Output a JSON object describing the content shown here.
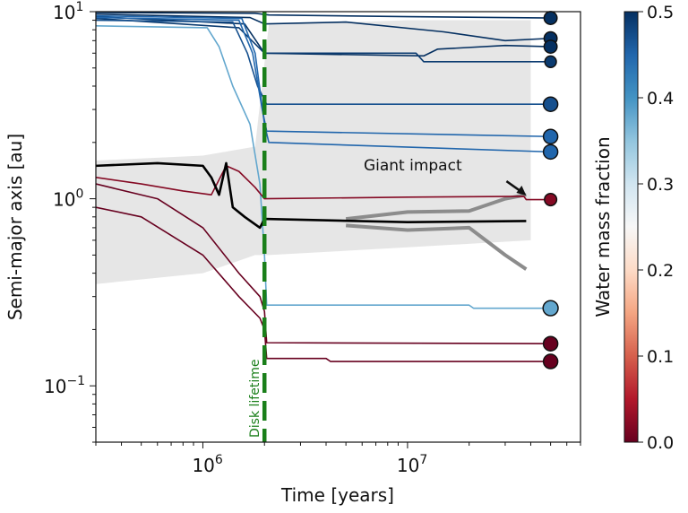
{
  "chart_data": {
    "type": "line",
    "xlabel": "Time [years]",
    "ylabel": "Semi-major axis [au]",
    "xscale": "log",
    "yscale": "log",
    "xlim": [
      300000,
      70000000
    ],
    "ylim": [
      0.05,
      10
    ],
    "xticks": [
      {
        "value": 1000000,
        "base": "10",
        "exp": "6"
      },
      {
        "value": 10000000,
        "base": "10",
        "exp": "7"
      }
    ],
    "yticks": [
      {
        "value": 10,
        "base": "10",
        "exp": "1"
      },
      {
        "value": 1,
        "base": "10",
        "exp": "0"
      },
      {
        "value": 0.1,
        "base": "10",
        "exp": "−1"
      }
    ],
    "grid": false,
    "colorbar": {
      "label": "Water mass fraction",
      "range": [
        0,
        0.5
      ],
      "colormap": "RdBu",
      "ticks": [
        "0.0",
        "0.1",
        "0.2",
        "0.3",
        "0.4",
        "0.5"
      ]
    },
    "disk_lifetime": {
      "x": 2000000,
      "label": "Disk lifetime",
      "color": "#1a7f1a"
    },
    "annotation": {
      "text": "Giant impact",
      "text_at": [
        13000000,
        1.5
      ],
      "arrow_to": [
        38000000,
        1.04
      ]
    },
    "background_envelope": {
      "color": "#c8c8c8",
      "points": [
        [
          300000,
          0.35,
          1.6
        ],
        [
          1000000,
          0.4,
          1.7
        ],
        [
          1800000,
          0.5,
          1.9
        ],
        [
          2100000,
          0.5,
          8.5
        ],
        [
          10000000,
          0.55,
          9
        ],
        [
          40000000,
          0.6,
          9
        ]
      ]
    },
    "tracks": [
      {
        "water": 0.5,
        "points": [
          [
            300000,
            9.9
          ],
          [
            1800000,
            9.8
          ],
          [
            2100000,
            9.6
          ],
          [
            10000000,
            9.4
          ],
          [
            50000000,
            9.25
          ]
        ]
      },
      {
        "water": 0.5,
        "points": [
          [
            300000,
            9.7
          ],
          [
            1700000,
            9.3
          ],
          [
            2000000,
            8.6
          ],
          [
            5000000,
            8.8
          ],
          [
            15000000,
            7.8
          ],
          [
            30000000,
            7.0
          ],
          [
            50000000,
            7.2
          ]
        ]
      },
      {
        "water": 0.5,
        "points": [
          [
            300000,
            9.4
          ],
          [
            1600000,
            8.6
          ],
          [
            2000000,
            6.0
          ],
          [
            12000000,
            5.8
          ],
          [
            14000000,
            6.3
          ],
          [
            30000000,
            6.6
          ],
          [
            50000000,
            6.5
          ]
        ]
      },
      {
        "water": 0.49,
        "points": [
          [
            300000,
            9.2
          ],
          [
            1500000,
            8.2
          ],
          [
            2000000,
            6.0
          ],
          [
            11000000,
            6.0
          ],
          [
            12000000,
            5.4
          ],
          [
            50000000,
            5.4
          ]
        ]
      },
      {
        "water": 0.47,
        "points": [
          [
            300000,
            9.0
          ],
          [
            1400000,
            8.8
          ],
          [
            1650000,
            6.0
          ],
          [
            1850000,
            4.0
          ],
          [
            2050000,
            3.2
          ],
          [
            50000000,
            3.2
          ]
        ]
      },
      {
        "water": 0.45,
        "points": [
          [
            300000,
            9.3
          ],
          [
            1500000,
            9.0
          ],
          [
            1750000,
            6.0
          ],
          [
            1950000,
            3.0
          ],
          [
            2050000,
            2.3
          ],
          [
            50000000,
            2.15
          ]
        ]
      },
      {
        "water": 0.45,
        "points": [
          [
            300000,
            9.5
          ],
          [
            1550000,
            9.2
          ],
          [
            1800000,
            6.0
          ],
          [
            2000000,
            2.5
          ],
          [
            2100000,
            2.0
          ],
          [
            50000000,
            1.78
          ]
        ]
      },
      {
        "water": 0.38,
        "points": [
          [
            300000,
            8.4
          ],
          [
            1050000,
            8.2
          ],
          [
            1200000,
            6.5
          ],
          [
            1400000,
            4.0
          ],
          [
            1700000,
            2.5
          ],
          [
            1900000,
            1.2
          ],
          [
            2000000,
            0.5
          ],
          [
            2050000,
            0.27
          ],
          [
            20000000,
            0.27
          ],
          [
            21000000,
            0.26
          ],
          [
            50000000,
            0.26
          ]
        ]
      },
      {
        "water": 0.02,
        "points": [
          [
            300000,
            1.3
          ],
          [
            500000,
            1.2
          ],
          [
            800000,
            1.1
          ],
          [
            1100000,
            1.05
          ],
          [
            1300000,
            1.5
          ],
          [
            1500000,
            1.4
          ],
          [
            1800000,
            1.15
          ],
          [
            2000000,
            1.0
          ],
          [
            10000000,
            1.02
          ],
          [
            37000000,
            1.03
          ],
          [
            38000000,
            0.99
          ],
          [
            50000000,
            0.99
          ]
        ]
      },
      {
        "water": 0.0,
        "points": [
          [
            300000,
            1.2
          ],
          [
            600000,
            1.0
          ],
          [
            1000000,
            0.7
          ],
          [
            1500000,
            0.4
          ],
          [
            1900000,
            0.3
          ],
          [
            2000000,
            0.25
          ],
          [
            2050000,
            0.17
          ],
          [
            50000000,
            0.168
          ]
        ]
      },
      {
        "water": 0.0,
        "points": [
          [
            300000,
            0.9
          ],
          [
            500000,
            0.8
          ],
          [
            1000000,
            0.5
          ],
          [
            1500000,
            0.3
          ],
          [
            1900000,
            0.23
          ],
          [
            2000000,
            0.2
          ],
          [
            2050000,
            0.14
          ],
          [
            4000000,
            0.14
          ],
          [
            4200000,
            0.135
          ],
          [
            50000000,
            0.135
          ]
        ]
      }
    ],
    "highlight_track": {
      "color": "#000000",
      "points": [
        [
          300000,
          1.5
        ],
        [
          600000,
          1.55
        ],
        [
          1000000,
          1.5
        ],
        [
          1100000,
          1.3
        ],
        [
          1200000,
          1.05
        ],
        [
          1300000,
          1.55
        ],
        [
          1400000,
          0.9
        ],
        [
          1600000,
          0.8
        ],
        [
          1900000,
          0.7
        ],
        [
          2000000,
          0.78
        ],
        [
          10000000,
          0.75
        ],
        [
          38000000,
          0.76
        ]
      ]
    },
    "impactor_tracks": {
      "color": "#8c8c8c",
      "branches": [
        [
          [
            5000000,
            0.78
          ],
          [
            10000000,
            0.85
          ],
          [
            20000000,
            0.86
          ],
          [
            30000000,
            1.0
          ],
          [
            38000000,
            1.05
          ]
        ],
        [
          [
            5000000,
            0.72
          ],
          [
            10000000,
            0.68
          ],
          [
            20000000,
            0.7
          ],
          [
            30000000,
            0.5
          ],
          [
            38000000,
            0.42
          ]
        ]
      ]
    },
    "final_planets": [
      {
        "t": 50000000,
        "a": 9.25,
        "water": 0.5,
        "size": 0.8
      },
      {
        "t": 50000000,
        "a": 7.2,
        "water": 0.5,
        "size": 0.8
      },
      {
        "t": 50000000,
        "a": 6.5,
        "water": 0.5,
        "size": 0.8
      },
      {
        "t": 50000000,
        "a": 5.4,
        "water": 0.49,
        "size": 0.6
      },
      {
        "t": 50000000,
        "a": 3.2,
        "water": 0.47,
        "size": 1.0
      },
      {
        "t": 50000000,
        "a": 2.15,
        "water": 0.45,
        "size": 1.0
      },
      {
        "t": 50000000,
        "a": 1.78,
        "water": 0.45,
        "size": 1.0
      },
      {
        "t": 50000000,
        "a": 0.99,
        "water": 0.02,
        "size": 0.7
      },
      {
        "t": 50000000,
        "a": 0.26,
        "water": 0.38,
        "size": 1.1
      },
      {
        "t": 50000000,
        "a": 0.168,
        "water": 0.0,
        "size": 1.0
      },
      {
        "t": 50000000,
        "a": 0.135,
        "water": 0.0,
        "size": 1.0
      }
    ]
  }
}
